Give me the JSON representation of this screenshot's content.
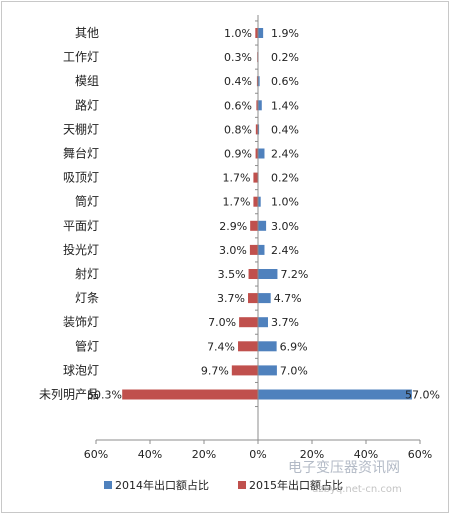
{
  "chart_data": {
    "type": "bar",
    "orientation": "horizontal",
    "layout": "diverging",
    "title": "",
    "xlabel": "",
    "ylabel": "",
    "xlim": [
      -60,
      60
    ],
    "x_tick_labels": [
      "60%",
      "40%",
      "20%",
      "0%",
      "20%",
      "40%",
      "60%"
    ],
    "grid": false,
    "legend_position": "bottom",
    "categories": [
      "其他",
      "工作灯",
      "模组",
      "路灯",
      "天棚灯",
      "舞台灯",
      "吸顶灯",
      "筒灯",
      "平面灯",
      "投光灯",
      "射灯",
      "灯条",
      "装饰灯",
      "管灯",
      "球泡灯",
      "未列明产品"
    ],
    "series": [
      {
        "name": "2014年出口额占比",
        "side": "right",
        "color": "#4f81bd",
        "values": [
          1.9,
          0.2,
          0.6,
          1.4,
          0.4,
          2.4,
          0.2,
          1.0,
          3.0,
          2.4,
          7.2,
          4.7,
          3.7,
          6.9,
          7.0,
          57.0
        ],
        "labels": [
          "1.9%",
          "0.2%",
          "0.6%",
          "1.4%",
          "0.4%",
          "2.4%",
          "0.2%",
          "1.0%",
          "3.0%",
          "2.4%",
          "7.2%",
          "4.7%",
          "3.7%",
          "6.9%",
          "7.0%",
          "57.0%"
        ]
      },
      {
        "name": "2015年出口额占比",
        "side": "left",
        "color": "#c0504d",
        "values": [
          1.0,
          0.3,
          0.4,
          0.6,
          0.8,
          0.9,
          1.7,
          1.7,
          2.9,
          3.0,
          3.5,
          3.7,
          7.0,
          7.4,
          9.7,
          50.3
        ],
        "labels": [
          "1.0%",
          "0.3%",
          "0.4%",
          "0.6%",
          "0.8%",
          "0.9%",
          "1.7%",
          "1.7%",
          "2.9%",
          "3.0%",
          "3.5%",
          "3.7%",
          "7.0%",
          "7.4%",
          "9.7%",
          "50.3%"
        ]
      }
    ]
  },
  "watermark": {
    "text": "电子变压器资讯网",
    "url": "dzbyq.net-cn.com"
  }
}
